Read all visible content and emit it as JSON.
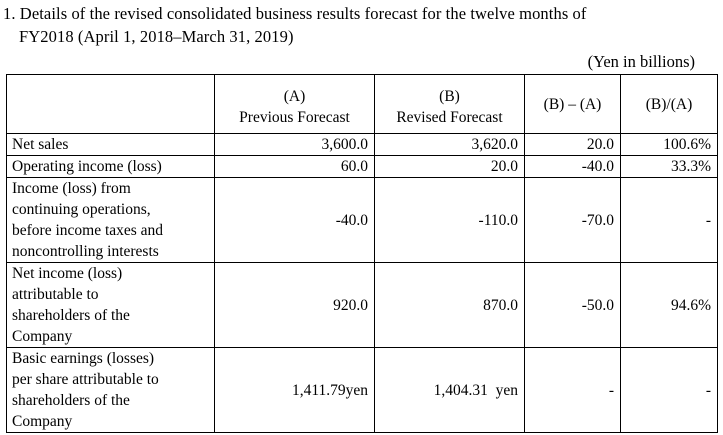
{
  "heading": {
    "line1": "1. Details of the revised consolidated business results forecast for the twelve months of",
    "line2": "FY2018 (April 1, 2018–March 31, 2019)"
  },
  "unit_note": "(Yen in billions)",
  "table": {
    "headers": {
      "blank": "",
      "col_a_code": "(A)",
      "col_a_label": "Previous Forecast",
      "col_b_code": "(B)",
      "col_b_label": "Revised Forecast",
      "diff": "(B) – (A)",
      "ratio": "(B)/(A)"
    },
    "rows": [
      {
        "label": [
          "Net sales"
        ],
        "a": "3,600.0",
        "b": "3,620.0",
        "diff": "20.0",
        "ratio": "100.6%"
      },
      {
        "label": [
          "Operating income (loss)"
        ],
        "a": "60.0",
        "b": "20.0",
        "diff": "-40.0",
        "ratio": "33.3%"
      },
      {
        "label": [
          "Income (loss) from",
          "continuing operations,",
          "before income taxes and",
          "noncontrolling interests"
        ],
        "a": "-40.0",
        "b": "-110.0",
        "diff": "-70.0",
        "ratio": "-"
      },
      {
        "label": [
          "Net income (loss)",
          "attributable to",
          "shareholders of the",
          "Company"
        ],
        "a": "920.0",
        "b": "870.0",
        "diff": "-50.0",
        "ratio": "94.6%"
      },
      {
        "label": [
          "Basic earnings (losses)",
          "per share attributable to",
          "shareholders of the",
          "Company"
        ],
        "a": "1,411.79yen",
        "b": "1,404.31  yen",
        "diff": "-",
        "ratio": "-"
      }
    ]
  }
}
